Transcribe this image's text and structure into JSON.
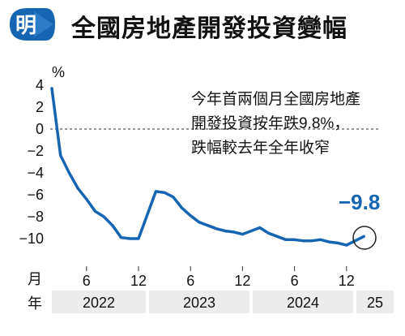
{
  "logo": {
    "glyph": "明",
    "color": "#1565b2"
  },
  "title": "全國房地產開發投資變幅",
  "annotation_lines": [
    "今年首兩個月全國房地產",
    "開發投資按年跌9.8%，",
    "跌幅較去年全年收窄"
  ],
  "latest_label": "−9.8",
  "axis": {
    "month_label": "月",
    "year_label": "年",
    "percent_unit": "%"
  },
  "colors": {
    "line": "#1565b2",
    "accent": "#1565b2",
    "year_band": "#ececec"
  },
  "chart_data": {
    "type": "line",
    "title": "全國房地產開發投資變幅",
    "ylabel": "%",
    "ylim": [
      -11,
      4
    ],
    "yticks": [
      4,
      2,
      0,
      -2,
      -4,
      -6,
      -8,
      -10
    ],
    "ytick_labels": [
      "4",
      "2",
      "0",
      "−2",
      "−4",
      "−6",
      "−8",
      "−10"
    ],
    "zero_line": "dashed",
    "x_tick_labels": [
      {
        "label": "6",
        "period": "2022-06"
      },
      {
        "label": "12",
        "period": "2022-12"
      },
      {
        "label": "6",
        "period": "2023-06"
      },
      {
        "label": "12",
        "period": "2023-12"
      },
      {
        "label": "6",
        "period": "2024-06"
      },
      {
        "label": "12",
        "period": "2024-12"
      }
    ],
    "years": [
      "2022",
      "2023",
      "2024",
      "25"
    ],
    "x": [
      "2022-02",
      "2022-03",
      "2022-04",
      "2022-05",
      "2022-06",
      "2022-07",
      "2022-08",
      "2022-09",
      "2022-10",
      "2022-11",
      "2022-12",
      "2023-02",
      "2023-03",
      "2023-04",
      "2023-05",
      "2023-06",
      "2023-07",
      "2023-08",
      "2023-09",
      "2023-10",
      "2023-11",
      "2023-12",
      "2024-02",
      "2024-03",
      "2024-04",
      "2024-05",
      "2024-06",
      "2024-07",
      "2024-08",
      "2024-09",
      "2024-10",
      "2024-11",
      "2024-12",
      "2025-02"
    ],
    "series": [
      {
        "values": [
          3.7,
          -2.4,
          -4.0,
          -5.4,
          -6.4,
          -7.5,
          -8.0,
          -8.8,
          -9.9,
          -10.0,
          -10.0,
          -5.7,
          -5.8,
          -6.2,
          -7.2,
          -7.9,
          -8.5,
          -8.8,
          -9.1,
          -9.3,
          -9.4,
          -9.6,
          -9.0,
          -9.5,
          -9.8,
          -10.1,
          -10.1,
          -10.2,
          -10.2,
          -10.1,
          -10.3,
          -10.4,
          -10.6,
          -9.8
        ]
      }
    ],
    "latest_value": -9.8
  }
}
